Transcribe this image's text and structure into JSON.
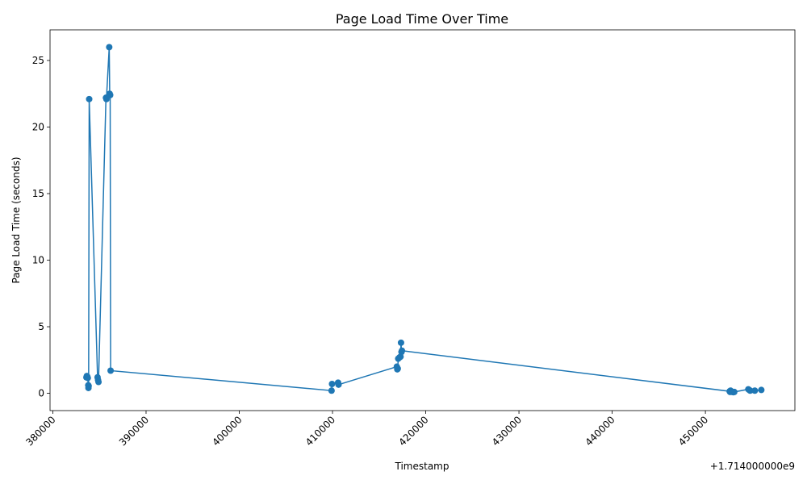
{
  "chart_data": {
    "type": "line",
    "title": "Page Load Time Over Time",
    "xlabel": "Timestamp",
    "ylabel": "Page Load Time (seconds)",
    "x_offset_label": "+1.714000000e9",
    "x_offset": 1714000000,
    "xlim": [
      1714379700,
      1714459600
    ],
    "ylim": [
      -1.3,
      27.3
    ],
    "x_ticks": [
      380000,
      390000,
      400000,
      410000,
      420000,
      430000,
      440000,
      450000
    ],
    "x_tick_labels": [
      "380000",
      "390000",
      "400000",
      "410000",
      "420000",
      "430000",
      "440000",
      "450000"
    ],
    "y_ticks": [
      0,
      5,
      10,
      15,
      20,
      25
    ],
    "y_tick_labels": [
      "0",
      "5",
      "10",
      "15",
      "20",
      "25"
    ],
    "grid": false,
    "marker": "circle",
    "color": "#1f77b4",
    "series": [
      {
        "x": [
          1714383600,
          1714383650,
          1714383700,
          1714383750,
          1714383800,
          1714383820,
          1714383840,
          1714383900,
          1714384800,
          1714384850,
          1714384900,
          1714385700,
          1714385750,
          1714386050,
          1714386100,
          1714386150,
          1714386200,
          1714409900,
          1714409950,
          1714410600,
          1714410650,
          1714416900,
          1714416950,
          1714417000,
          1714417050,
          1714417200,
          1714417300,
          1714417350,
          1714417400,
          1714417450,
          1714452600,
          1714452650,
          1714452700,
          1714452800,
          1714452900,
          1714453000,
          1714453100,
          1714454600,
          1714454700,
          1714454800,
          1714455300,
          1714456000
        ],
        "y": [
          1.2,
          1.3,
          1.25,
          1.15,
          0.6,
          0.4,
          0.55,
          22.1,
          1.2,
          1.0,
          0.85,
          22.2,
          22.1,
          26.0,
          22.5,
          22.4,
          1.7,
          0.2,
          0.7,
          0.8,
          0.65,
          2.0,
          1.8,
          1.85,
          2.6,
          2.7,
          2.75,
          3.8,
          3.1,
          3.2,
          0.15,
          0.1,
          0.2,
          0.12,
          0.1,
          0.08,
          0.1,
          0.3,
          0.25,
          0.2,
          0.2,
          0.25
        ]
      }
    ]
  }
}
